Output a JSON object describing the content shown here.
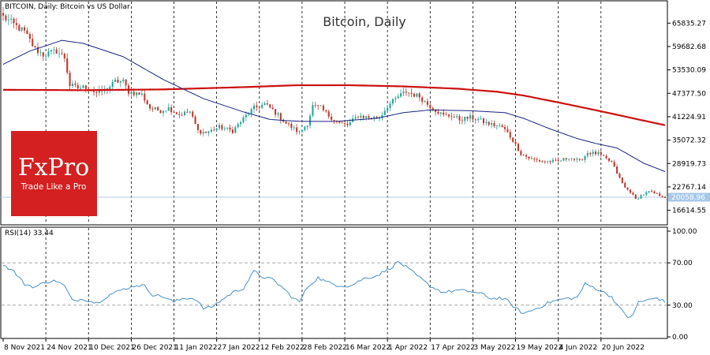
{
  "chart_data": [
    {
      "type": "candlestick",
      "header": "BITCOIN, Daily:  Bitcoin vs US Dollar",
      "title": "Bitcoin, Daily",
      "y_ticks": [
        "65835.27",
        "59682.68",
        "53530.09",
        "47377.50",
        "41224.91",
        "35072.32",
        "28919.73",
        "22767.14",
        "16614.55"
      ],
      "ylim": [
        13000,
        71500
      ],
      "last_price": 20058.96,
      "last_price_label": "20058.96",
      "x_ticks": [
        "8 Nov 2021",
        "24 Nov 2021",
        "10 Dec 2021",
        "26 Dec 2021",
        "11 Jan 2022",
        "27 Jan 2022",
        "12 Feb 2022",
        "28 Feb 2022",
        "16 Mar 2022",
        "1 Apr 2022",
        "17 Apr 2022",
        "3 May 2022",
        "19 May 2022",
        "4 Jun 2022",
        "20 Jun 2022"
      ],
      "close_anchors": [
        [
          0,
          67500
        ],
        [
          3,
          66000
        ],
        [
          8,
          63500
        ],
        [
          12,
          59000
        ],
        [
          15,
          57500
        ],
        [
          20,
          58500
        ],
        [
          23,
          56800
        ],
        [
          25,
          49500
        ],
        [
          28,
          48800
        ],
        [
          31,
          49000
        ],
        [
          35,
          47500
        ],
        [
          39,
          48500
        ],
        [
          42,
          50500
        ],
        [
          45,
          50500
        ],
        [
          47,
          47800
        ],
        [
          52,
          47000
        ],
        [
          55,
          43500
        ],
        [
          59,
          42800
        ],
        [
          62,
          43500
        ],
        [
          66,
          41800
        ],
        [
          70,
          42500
        ],
        [
          73,
          37500
        ],
        [
          76,
          37000
        ],
        [
          81,
          38500
        ],
        [
          86,
          37500
        ],
        [
          91,
          41500
        ],
        [
          94,
          43500
        ],
        [
          98,
          44500
        ],
        [
          101,
          43000
        ],
        [
          106,
          39500
        ],
        [
          109,
          38000
        ],
        [
          111,
          37000
        ],
        [
          114,
          39500
        ],
        [
          116,
          44000
        ],
        [
          119,
          43500
        ],
        [
          122,
          41500
        ],
        [
          126,
          39500
        ],
        [
          129,
          39000
        ],
        [
          133,
          41500
        ],
        [
          137,
          41000
        ],
        [
          141,
          41000
        ],
        [
          144,
          44000
        ],
        [
          148,
          46500
        ],
        [
          151,
          47800
        ],
        [
          156,
          46500
        ],
        [
          159,
          44500
        ],
        [
          162,
          43000
        ],
        [
          165,
          41500
        ],
        [
          168,
          41500
        ],
        [
          171,
          40500
        ],
        [
          175,
          41000
        ],
        [
          178,
          40500
        ],
        [
          181,
          39500
        ],
        [
          184,
          39000
        ],
        [
          187,
          38500
        ],
        [
          189,
          37000
        ],
        [
          191,
          35000
        ],
        [
          194,
          31500
        ],
        [
          198,
          30000
        ],
        [
          202,
          29500
        ],
        [
          208,
          29500
        ],
        [
          212,
          30500
        ],
        [
          216,
          29500
        ],
        [
          219,
          31800
        ],
        [
          223,
          31500
        ],
        [
          225,
          30500
        ],
        [
          228,
          29200
        ],
        [
          231,
          25000
        ],
        [
          233,
          22500
        ],
        [
          235,
          21500
        ],
        [
          237,
          19500
        ],
        [
          239,
          20500
        ],
        [
          242,
          21500
        ],
        [
          245,
          20800
        ],
        [
          248,
          20000
        ]
      ],
      "ma_blue_anchors": [
        [
          0,
          55000
        ],
        [
          10,
          58500
        ],
        [
          22,
          61300
        ],
        [
          30,
          60500
        ],
        [
          45,
          57000
        ],
        [
          60,
          51000
        ],
        [
          75,
          46000
        ],
        [
          90,
          42500
        ],
        [
          100,
          40500
        ],
        [
          106,
          40200
        ],
        [
          112,
          40000
        ],
        [
          125,
          40000
        ],
        [
          140,
          40800
        ],
        [
          150,
          42300
        ],
        [
          160,
          43000
        ],
        [
          175,
          42800
        ],
        [
          188,
          42300
        ],
        [
          195,
          40800
        ],
        [
          205,
          38000
        ],
        [
          215,
          35500
        ],
        [
          222,
          34200
        ],
        [
          230,
          33000
        ],
        [
          240,
          29000
        ],
        [
          248,
          26800
        ]
      ],
      "ma_red_anchors": [
        [
          0,
          48300
        ],
        [
          30,
          48200
        ],
        [
          60,
          48400
        ],
        [
          90,
          49000
        ],
        [
          110,
          49500
        ],
        [
          130,
          49500
        ],
        [
          150,
          49200
        ],
        [
          170,
          48600
        ],
        [
          185,
          47800
        ],
        [
          195,
          46800
        ],
        [
          210,
          44700
        ],
        [
          225,
          42500
        ],
        [
          240,
          40200
        ],
        [
          248,
          39000
        ]
      ]
    },
    {
      "type": "line",
      "header": "RSI(14) 33.44",
      "y_ticks": [
        "100.00",
        "70.00",
        "30.00",
        "0.00"
      ],
      "ylim": [
        0,
        100
      ],
      "levels": [
        70,
        30
      ],
      "anchors": [
        [
          0,
          68
        ],
        [
          4,
          62
        ],
        [
          8,
          50
        ],
        [
          12,
          47
        ],
        [
          16,
          52
        ],
        [
          20,
          53
        ],
        [
          23,
          48
        ],
        [
          26,
          34
        ],
        [
          30,
          36
        ],
        [
          35,
          32
        ],
        [
          40,
          40
        ],
        [
          45,
          45
        ],
        [
          50,
          49
        ],
        [
          53,
          48
        ],
        [
          56,
          40
        ],
        [
          60,
          38
        ],
        [
          64,
          33
        ],
        [
          68,
          37
        ],
        [
          72,
          36
        ],
        [
          75,
          27
        ],
        [
          78,
          28
        ],
        [
          82,
          35
        ],
        [
          86,
          42
        ],
        [
          90,
          46
        ],
        [
          94,
          62
        ],
        [
          97,
          57
        ],
        [
          101,
          54
        ],
        [
          105,
          46
        ],
        [
          108,
          38
        ],
        [
          111,
          33
        ],
        [
          114,
          47
        ],
        [
          118,
          56
        ],
        [
          121,
          52
        ],
        [
          125,
          49
        ],
        [
          130,
          48
        ],
        [
          135,
          55
        ],
        [
          140,
          58
        ],
        [
          145,
          65
        ],
        [
          148,
          71
        ],
        [
          151,
          66
        ],
        [
          155,
          58
        ],
        [
          160,
          48
        ],
        [
          165,
          42
        ],
        [
          170,
          44
        ],
        [
          175,
          43
        ],
        [
          180,
          40
        ],
        [
          183,
          36
        ],
        [
          186,
          37
        ],
        [
          189,
          34
        ],
        [
          192,
          27
        ],
        [
          195,
          22
        ],
        [
          200,
          27
        ],
        [
          205,
          33
        ],
        [
          210,
          36
        ],
        [
          215,
          37
        ],
        [
          218,
          50
        ],
        [
          222,
          46
        ],
        [
          225,
          42
        ],
        [
          228,
          38
        ],
        [
          231,
          27
        ],
        [
          234,
          19
        ],
        [
          236,
          20
        ],
        [
          238,
          33
        ],
        [
          242,
          35
        ],
        [
          245,
          37
        ],
        [
          248,
          33
        ]
      ]
    }
  ],
  "logo": {
    "name": "FxPro",
    "tagline": "Trade Like a Pro"
  },
  "colors": {
    "up": "#26a69a",
    "down": "#c0392b",
    "ma_fast": "#1a237e",
    "ma_slow": "#cc1010",
    "rsi_line": "#4a90c8",
    "logo_bg": "#d42020",
    "price_tag": "#a6c8e8"
  }
}
